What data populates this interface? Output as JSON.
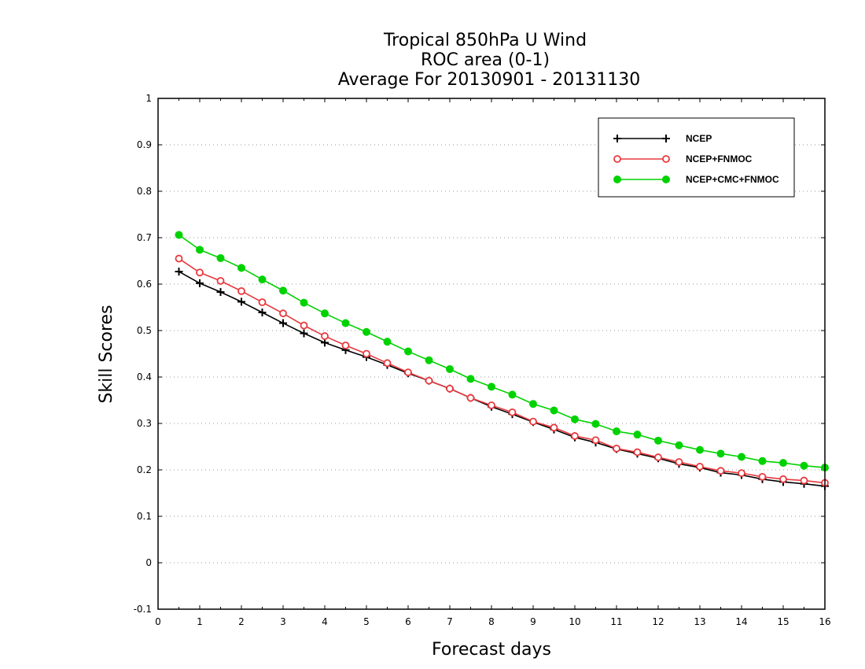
{
  "chart_data": {
    "type": "line",
    "title": [
      "Tropical 850hPa U Wind",
      "ROC area (0-1)",
      "Average For 20130901 - 20131130"
    ],
    "xlabel": "Forecast days",
    "ylabel": "Skill Scores",
    "xlim": [
      0,
      16
    ],
    "ylim": [
      -0.1,
      1
    ],
    "xticks": [
      "0",
      "1",
      "2",
      "3",
      "4",
      "5",
      "6",
      "7",
      "8",
      "9",
      "10",
      "11",
      "12",
      "13",
      "14",
      "15",
      "16"
    ],
    "yticks": [
      "-0.1",
      "0",
      "0.1",
      "0.2",
      "0.3",
      "0.4",
      "0.5",
      "0.6",
      "0.7",
      "0.8",
      "0.9",
      "1"
    ],
    "grid": true,
    "legend_position": "top-right",
    "x": [
      0.5,
      1,
      1.5,
      2,
      2.5,
      3,
      3.5,
      4,
      4.5,
      5,
      5.5,
      6,
      6.5,
      7,
      7.5,
      8,
      8.5,
      9,
      9.5,
      10,
      10.5,
      11,
      11.5,
      12,
      12.5,
      13,
      13.5,
      14,
      14.5,
      15,
      15.5,
      16
    ],
    "series": [
      {
        "name": "NCEP",
        "color": "#000000",
        "marker": "plus",
        "values": [
          0.627,
          0.602,
          0.583,
          0.562,
          0.539,
          0.516,
          0.494,
          0.474,
          0.458,
          0.443,
          0.426,
          0.408,
          0.392,
          0.375,
          0.355,
          0.336,
          0.32,
          0.303,
          0.287,
          0.27,
          0.259,
          0.245,
          0.235,
          0.225,
          0.213,
          0.205,
          0.194,
          0.189,
          0.18,
          0.174,
          0.17,
          0.165
        ]
      },
      {
        "name": "NCEP+FNMOC",
        "color": "#e8393e",
        "marker": "open-circle",
        "values": [
          0.655,
          0.625,
          0.607,
          0.585,
          0.561,
          0.537,
          0.511,
          0.488,
          0.468,
          0.45,
          0.43,
          0.41,
          0.392,
          0.375,
          0.355,
          0.339,
          0.324,
          0.304,
          0.291,
          0.273,
          0.264,
          0.246,
          0.238,
          0.227,
          0.217,
          0.207,
          0.198,
          0.193,
          0.185,
          0.18,
          0.177,
          0.172
        ]
      },
      {
        "name": "NCEP+CMC+FNMOC",
        "color": "#00d200",
        "marker": "filled-circle",
        "values": [
          0.706,
          0.674,
          0.656,
          0.635,
          0.61,
          0.586,
          0.56,
          0.537,
          0.516,
          0.497,
          0.476,
          0.455,
          0.436,
          0.417,
          0.396,
          0.379,
          0.362,
          0.342,
          0.328,
          0.309,
          0.299,
          0.283,
          0.276,
          0.263,
          0.253,
          0.243,
          0.235,
          0.228,
          0.219,
          0.215,
          0.209,
          0.205
        ]
      }
    ]
  }
}
